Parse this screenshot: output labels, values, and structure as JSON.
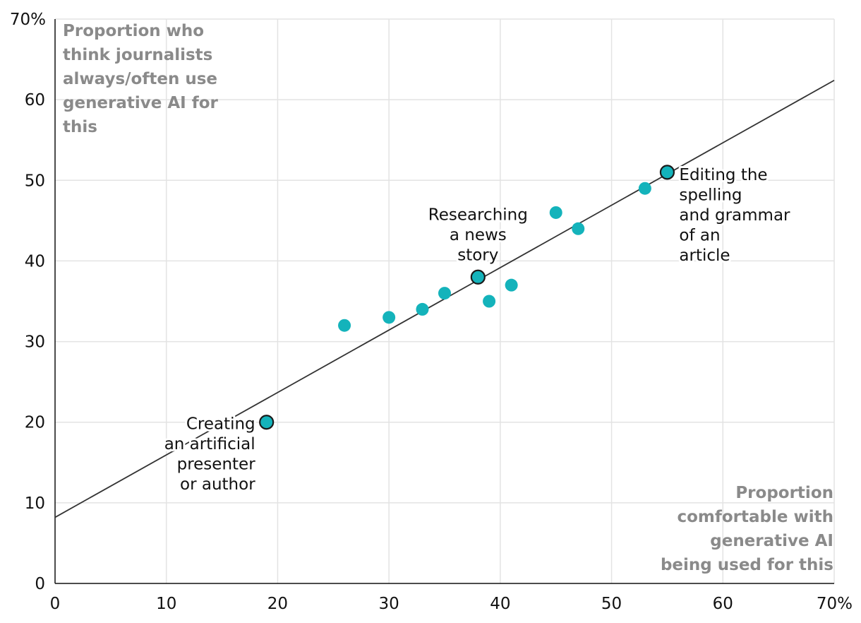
{
  "chart_data": {
    "type": "scatter",
    "title": "",
    "xlabel": "Proportion comfortable with generative AI being used for this",
    "ylabel": "Proportion who think journalists always/often use generative AI for this",
    "xlabel_lines": [
      "Proportion",
      "comfortable with",
      "generative AI",
      "being used for this"
    ],
    "ylabel_lines": [
      "Proportion who",
      "think journalists",
      "always/often use",
      "generative AI for",
      "this"
    ],
    "xlim": [
      0,
      70
    ],
    "ylim": [
      0,
      70
    ],
    "x_ticks": [
      0,
      10,
      20,
      30,
      40,
      50,
      60,
      70
    ],
    "y_ticks": [
      0,
      10,
      20,
      30,
      40,
      50,
      60,
      70
    ],
    "x_tick_labels": [
      "0",
      "10",
      "20",
      "30",
      "40",
      "50",
      "60",
      "70%"
    ],
    "y_tick_labels": [
      "0",
      "10",
      "20",
      "30",
      "40",
      "50",
      "60",
      "70%"
    ],
    "grid": true,
    "points": [
      {
        "x": 19,
        "y": 20,
        "highlight": true
      },
      {
        "x": 26,
        "y": 32,
        "highlight": false
      },
      {
        "x": 30,
        "y": 33,
        "highlight": false
      },
      {
        "x": 33,
        "y": 34,
        "highlight": false
      },
      {
        "x": 35,
        "y": 36,
        "highlight": false
      },
      {
        "x": 38,
        "y": 38,
        "highlight": true
      },
      {
        "x": 39,
        "y": 35,
        "highlight": false
      },
      {
        "x": 41,
        "y": 37,
        "highlight": false
      },
      {
        "x": 45,
        "y": 46,
        "highlight": false
      },
      {
        "x": 47,
        "y": 44,
        "highlight": false
      },
      {
        "x": 53,
        "y": 49,
        "highlight": false
      },
      {
        "x": 55,
        "y": 51,
        "highlight": true
      }
    ],
    "trendline": {
      "x": [
        0,
        70
      ],
      "y": [
        8.2,
        62.4
      ]
    },
    "annotations": [
      {
        "lines": [
          "Creating",
          "an artificial",
          "presenter",
          "or author"
        ],
        "x": 19,
        "y": 20
      },
      {
        "lines": [
          "Researching",
          "a news",
          "story"
        ],
        "x": 38,
        "y": 38
      },
      {
        "lines": [
          "Editing the",
          "spelling",
          "and grammar",
          "of an",
          "article"
        ],
        "x": 55,
        "y": 51
      }
    ],
    "colors": {
      "point": "#14b3bb",
      "point_stroke": "#1a1a1a",
      "trendline": "#333333",
      "grid": "#e3e3e3",
      "axis": "#111111",
      "axis_title": "#8a8a8a"
    }
  }
}
